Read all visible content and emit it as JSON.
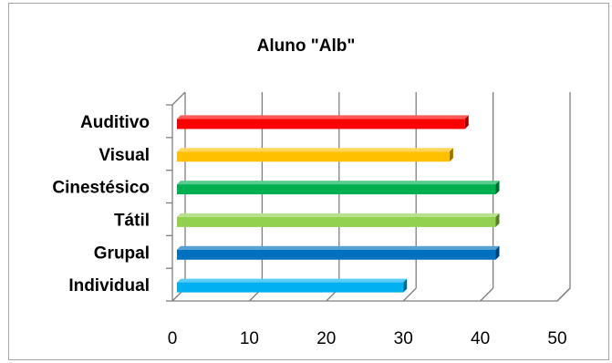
{
  "chart_data": {
    "type": "bar",
    "orientation": "horizontal",
    "style": "3d",
    "title": "Aluno \"Alb\"",
    "xlabel": "",
    "ylabel": "",
    "categories": [
      "Auditivo",
      "Visual",
      "Cinestésico",
      "Tátil",
      "Grupal",
      "Individual"
    ],
    "values": [
      38,
      36,
      42,
      42,
      42,
      30
    ],
    "colors": [
      "#ff0000",
      "#ffc000",
      "#00b050",
      "#92d050",
      "#0070c0",
      "#00b0f0"
    ],
    "xlim": [
      0,
      50
    ],
    "xticks": [
      "0",
      "10",
      "20",
      "30",
      "40",
      "50"
    ],
    "grid": true,
    "legend": "none"
  }
}
